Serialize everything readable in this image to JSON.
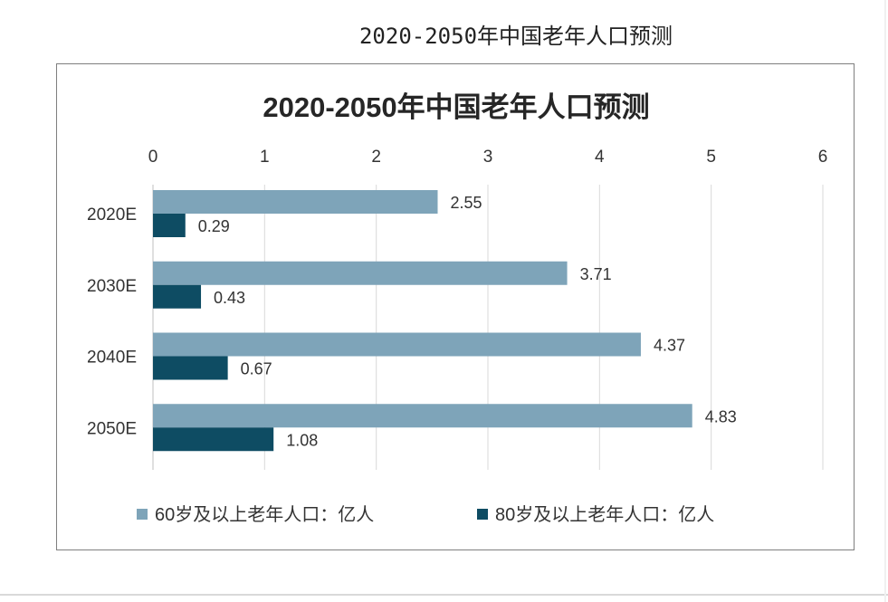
{
  "page_title": "2020-2050年中国老年人口预测",
  "colors": {
    "series_60": "#7ea4b9",
    "series_80": "#0e4c63",
    "grid": "#d9d9d9",
    "axis_text": "#333333"
  },
  "chart_data": {
    "type": "bar",
    "orientation": "horizontal",
    "title": "2020-2050年中国老年人口预测",
    "categories": [
      "2020E",
      "2030E",
      "2040E",
      "2050E"
    ],
    "series": [
      {
        "name": "60岁及以上老年人口：亿人",
        "values": [
          2.55,
          3.71,
          4.37,
          4.83
        ]
      },
      {
        "name": "80岁及以上老年人口：亿人",
        "values": [
          0.29,
          0.43,
          0.67,
          1.08
        ]
      }
    ],
    "xlim": [
      0,
      6
    ],
    "xticks": [
      "0",
      "1",
      "2",
      "3",
      "4",
      "5",
      "6"
    ],
    "data_labels": [
      [
        "2.55",
        "3.71",
        "4.37",
        "4.83"
      ],
      [
        "0.29",
        "0.43",
        "0.67",
        "1.08"
      ]
    ],
    "xaxis_position": "top",
    "grid": true,
    "legend_position": "bottom"
  }
}
